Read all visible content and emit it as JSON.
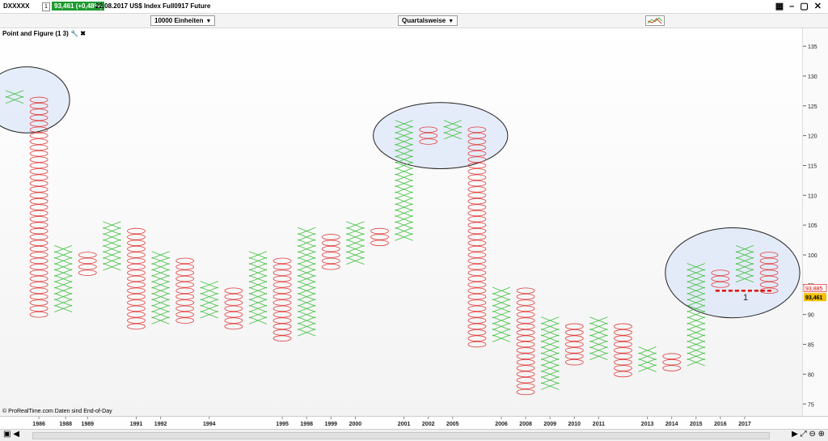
{
  "topbar": {
    "ticker": "DXXXXX",
    "box": "1",
    "quote": "93,461 (+0,48%)",
    "title": "22.08.2017 US$ Index Full0917 Future"
  },
  "toolbar": {
    "units": "10000 Einheiten",
    "period": "Quartalsweise"
  },
  "panel": {
    "label": "Point and Figure (1 3)"
  },
  "credit": "© ProRealTime.com  Daten sind End-of-Day",
  "colors": {
    "x": "#3fbf3f",
    "o": "#e03c3c",
    "ellipse_fill": "#dce6f8",
    "current": "#f2c200"
  },
  "chart_data": {
    "type": "point-and-figure",
    "box_size": 1,
    "reversal": 3,
    "ylim": [
      73,
      138
    ],
    "y_ticks": [
      75,
      80,
      85,
      90,
      95,
      100,
      105,
      110,
      115,
      120,
      125,
      130,
      135
    ],
    "x_labels": [
      "1986",
      "1988",
      "1989",
      "1991",
      "1992",
      "1994",
      "1995",
      "1998",
      "1999",
      "2000",
      "2001",
      "2002",
      "2005",
      "2006",
      "2008",
      "2009",
      "2010",
      "2011",
      "2013",
      "2014",
      "2015",
      "2016",
      "2017"
    ],
    "columns": [
      {
        "type": "X",
        "low": 126,
        "high": 127
      },
      {
        "type": "O",
        "low": 90,
        "high": 126
      },
      {
        "type": "X",
        "low": 91,
        "high": 101
      },
      {
        "type": "O",
        "low": 97,
        "high": 100
      },
      {
        "type": "X",
        "low": 98,
        "high": 105
      },
      {
        "type": "O",
        "low": 88,
        "high": 104
      },
      {
        "type": "X",
        "low": 89,
        "high": 100
      },
      {
        "type": "O",
        "low": 89,
        "high": 99
      },
      {
        "type": "X",
        "low": 90,
        "high": 95
      },
      {
        "type": "O",
        "low": 88,
        "high": 94
      },
      {
        "type": "X",
        "low": 89,
        "high": 100
      },
      {
        "type": "O",
        "low": 86,
        "high": 99
      },
      {
        "type": "X",
        "low": 87,
        "high": 104
      },
      {
        "type": "O",
        "low": 98,
        "high": 103
      },
      {
        "type": "X",
        "low": 99,
        "high": 105
      },
      {
        "type": "O",
        "low": 102,
        "high": 104
      },
      {
        "type": "X",
        "low": 103,
        "high": 122
      },
      {
        "type": "O",
        "low": 119,
        "high": 121
      },
      {
        "type": "X",
        "low": 120,
        "high": 122
      },
      {
        "type": "O",
        "low": 85,
        "high": 121
      },
      {
        "type": "X",
        "low": 86,
        "high": 94
      },
      {
        "type": "O",
        "low": 77,
        "high": 94
      },
      {
        "type": "X",
        "low": 78,
        "high": 89
      },
      {
        "type": "O",
        "low": 82,
        "high": 88
      },
      {
        "type": "X",
        "low": 83,
        "high": 89
      },
      {
        "type": "O",
        "low": 80,
        "high": 88
      },
      {
        "type": "X",
        "low": 81,
        "high": 84
      },
      {
        "type": "O",
        "low": 81,
        "high": 83
      },
      {
        "type": "X",
        "low": 82,
        "high": 98
      },
      {
        "type": "O",
        "low": 95,
        "high": 97
      },
      {
        "type": "X",
        "low": 96,
        "high": 101
      },
      {
        "type": "O",
        "low": 94,
        "high": 100
      }
    ],
    "current_price": "93,461",
    "reference_price": "93,885",
    "annotation": "1",
    "circled_regions": [
      {
        "from_column": 0,
        "to_column": 1,
        "low": 121,
        "high": 131
      },
      {
        "from_column": 16,
        "to_column": 19,
        "low": 115,
        "high": 125
      },
      {
        "from_column": 28,
        "to_column": 31,
        "low": 90,
        "high": 104
      }
    ]
  }
}
